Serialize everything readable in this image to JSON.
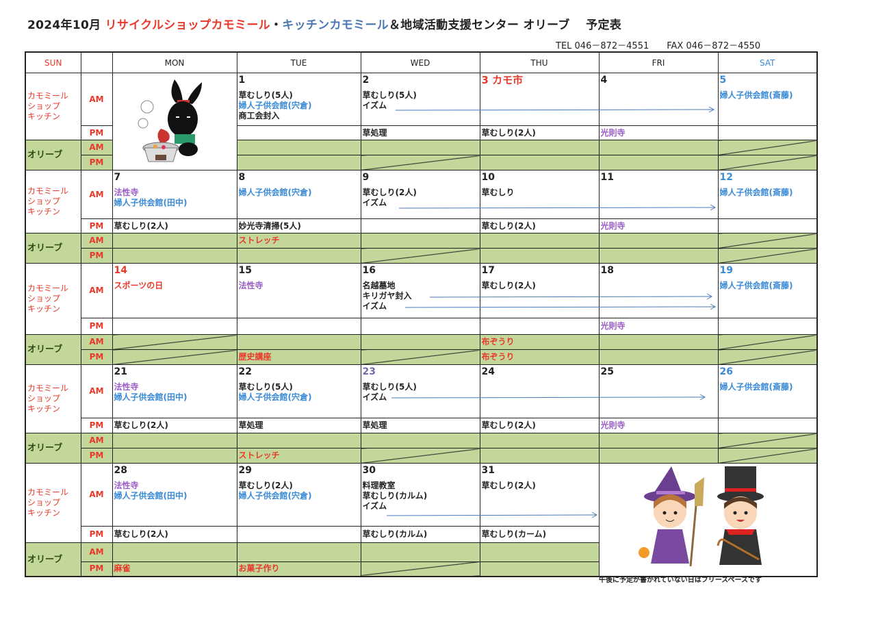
{
  "header": {
    "title_parts": [
      {
        "text": "2024年10月 ",
        "color": "#222222"
      },
      {
        "text": " リサイクルショップカモミール",
        "color": "#e8392a"
      },
      {
        "text": "・",
        "color": "#222222"
      },
      {
        "text": "キッチンカモミール",
        "color": "#4a78b0"
      },
      {
        "text": "＆地域活動支援センター オリーブ　 予定表",
        "color": "#222222"
      }
    ],
    "tel": "TEL 046－872－4551",
    "fax": "FAX 046－872－4550"
  },
  "colors": {
    "red": "#e8392a",
    "blue": "#3a8ad6",
    "purple": "#9a5cc6",
    "purple_date": "#7a68a8",
    "black": "#222222",
    "olive_bg": "#c4d79b",
    "olive_label": "#2d4a12",
    "arrow": "#4a7ab8"
  },
  "columns": [
    {
      "label": "SUN",
      "color": "red"
    },
    {
      "label": "",
      "color": "black"
    },
    {
      "label": "MON",
      "color": "black"
    },
    {
      "label": "TUE",
      "color": "black"
    },
    {
      "label": "WED",
      "color": "black"
    },
    {
      "label": "THU",
      "color": "black"
    },
    {
      "label": "FRI",
      "color": "black"
    },
    {
      "label": "SAT",
      "color": "blue"
    }
  ],
  "labels": {
    "kitchen": [
      "カモミール",
      "ショップ",
      "キッチン"
    ],
    "olive": "オリーブ",
    "am": "AM",
    "pm": "PM"
  },
  "weeks": [
    {
      "days": [
        {
          "image": "rabbit-cooking-illustration"
        },
        {
          "date": "1",
          "am": [
            {
              "text": "草むしり(5人)",
              "color": "black"
            },
            {
              "text": "婦人子供会館(宍倉)",
              "color": "blue"
            },
            {
              "text": "商工会封入",
              "color": "black"
            }
          ]
        },
        {
          "date": "2",
          "am": [
            {
              "text": "草むしり(5人)",
              "color": "black"
            },
            {
              "text": "イズム",
              "color": "black"
            }
          ],
          "pm": {
            "text": "草処理",
            "color": "black"
          },
          "olive_pm_slash": true
        },
        {
          "date": "3 カモ市",
          "date_color": "red",
          "pm": {
            "text": "草むしり(2人)",
            "color": "black"
          }
        },
        {
          "date": "4",
          "pm": {
            "text": "光則寺",
            "color": "purple"
          }
        },
        {
          "date": "5",
          "date_color": "blue",
          "am": [
            {
              "text": "婦人子供会館(斎藤)",
              "color": "blue"
            }
          ],
          "olive_am_slash": true,
          "olive_pm_slash": true
        }
      ]
    },
    {
      "days": [
        {
          "date": "7",
          "am": [
            {
              "text": "法性寺",
              "color": "purple"
            },
            {
              "text": "婦人子供会館(田中)",
              "color": "blue"
            }
          ],
          "pm": {
            "text": "草むしり(2人)",
            "color": "black"
          }
        },
        {
          "date": "8",
          "am": [
            {
              "text": "婦人子供会館(宍倉)",
              "color": "blue"
            }
          ],
          "pm": {
            "text": "妙光寺清掃(5人)",
            "color": "black"
          },
          "olive_am": {
            "text": "ストレッチ",
            "color": "red"
          }
        },
        {
          "date": "9",
          "am": [
            {
              "text": "草むしり(2人)",
              "color": "black"
            },
            {
              "text": "イズム",
              "color": "black"
            }
          ],
          "olive_pm_slash": true
        },
        {
          "date": "10",
          "am": [
            {
              "text": "草むしり",
              "color": "black"
            }
          ],
          "pm": {
            "text": "草むしり(2人)",
            "color": "black"
          }
        },
        {
          "date": "11",
          "pm": {
            "text": "光則寺",
            "color": "purple"
          }
        },
        {
          "date": "12",
          "date_color": "blue",
          "am": [
            {
              "text": "婦人子供会館(斎藤)",
              "color": "blue"
            }
          ],
          "olive_am_slash": true,
          "olive_pm_slash": true
        }
      ]
    },
    {
      "days": [
        {
          "date": "14",
          "date_color": "red",
          "am": [
            {
              "text": "スポーツの日",
              "color": "red"
            }
          ],
          "olive_am_slash": true,
          "olive_pm_slash": true
        },
        {
          "date": "15",
          "am": [
            {
              "text": "法性寺",
              "color": "purple"
            }
          ],
          "olive_pm": {
            "text": "歴史講座",
            "color": "red"
          }
        },
        {
          "date": "16",
          "am": [
            {
              "text": "名越墓地",
              "color": "black"
            },
            {
              "text": "キリガヤ封入",
              "color": "black"
            },
            {
              "text": "イズム",
              "color": "black"
            }
          ],
          "olive_pm_slash": true
        },
        {
          "date": "17",
          "am": [
            {
              "text": "草むしり(2人)",
              "color": "black"
            }
          ],
          "olive_am": {
            "text": "布ぞうり",
            "color": "red"
          },
          "olive_pm": {
            "text": "布ぞうり",
            "color": "red"
          }
        },
        {
          "date": "18",
          "pm": {
            "text": "光則寺",
            "color": "purple"
          }
        },
        {
          "date": "19",
          "date_color": "blue",
          "am": [
            {
              "text": "婦人子供会館(斎藤)",
              "color": "blue"
            }
          ],
          "olive_am_slash": true,
          "olive_pm_slash": true
        }
      ]
    },
    {
      "days": [
        {
          "date": "21",
          "am": [
            {
              "text": "法性寺",
              "color": "purple"
            },
            {
              "text": "婦人子供会館(田中)",
              "color": "blue"
            }
          ],
          "pm": {
            "text": "草むしり(2人)",
            "color": "black"
          }
        },
        {
          "date": "22",
          "am": [
            {
              "text": "草むしり(5人)",
              "color": "black"
            },
            {
              "text": "婦人子供会館(宍倉)",
              "color": "blue"
            }
          ],
          "pm": {
            "text": "草処理",
            "color": "black"
          },
          "olive_pm": {
            "text": "ストレッチ",
            "color": "red"
          }
        },
        {
          "date": "23",
          "date_color": "purple_date",
          "am": [
            {
              "text": "草むしり(5人)",
              "color": "black"
            },
            {
              "text": "イズム",
              "color": "black"
            }
          ],
          "pm": {
            "text": "草処理",
            "color": "black"
          },
          "olive_pm_slash": true
        },
        {
          "date": "24",
          "pm": {
            "text": "草むしり(2人)",
            "color": "black"
          }
        },
        {
          "date": "25",
          "pm": {
            "text": "光則寺",
            "color": "purple"
          }
        },
        {
          "date": "26",
          "date_color": "blue",
          "am": [
            {
              "text": "婦人子供会館(斎藤)",
              "color": "blue"
            }
          ],
          "olive_am_slash": true,
          "olive_pm_slash": true
        }
      ]
    },
    {
      "days": [
        {
          "date": "28",
          "am": [
            {
              "text": "法性寺",
              "color": "purple"
            },
            {
              "text": "婦人子供会館(田中)",
              "color": "blue"
            }
          ],
          "pm": {
            "text": "草むしり(2人)",
            "color": "black"
          },
          "olive_pm": {
            "text": "麻雀",
            "color": "red"
          }
        },
        {
          "date": "29",
          "am": [
            {
              "text": "草むしり(2人)",
              "color": "black"
            },
            {
              "text": "婦人子供会館(宍倉)",
              "color": "blue"
            }
          ],
          "olive_pm": {
            "text": "お菓子作り",
            "color": "red"
          }
        },
        {
          "date": "30",
          "am": [
            {
              "text": "料理教室",
              "color": "black"
            },
            {
              "text": "草むしり(カルム)",
              "color": "black"
            },
            {
              "text": "イズム",
              "color": "black"
            }
          ],
          "pm": {
            "text": "草むしり(カルム)",
            "color": "black"
          },
          "olive_pm_slash": true
        },
        {
          "date": "31",
          "am": [
            {
              "text": "草むしり(2人)",
              "color": "black"
            }
          ],
          "pm": {
            "text": "草むしり(カーム)",
            "color": "black"
          }
        },
        {
          "image": "halloween-kids-illustration"
        }
      ]
    }
  ],
  "footer_note": "午後に予定が書かれていない日はフリースペースです"
}
